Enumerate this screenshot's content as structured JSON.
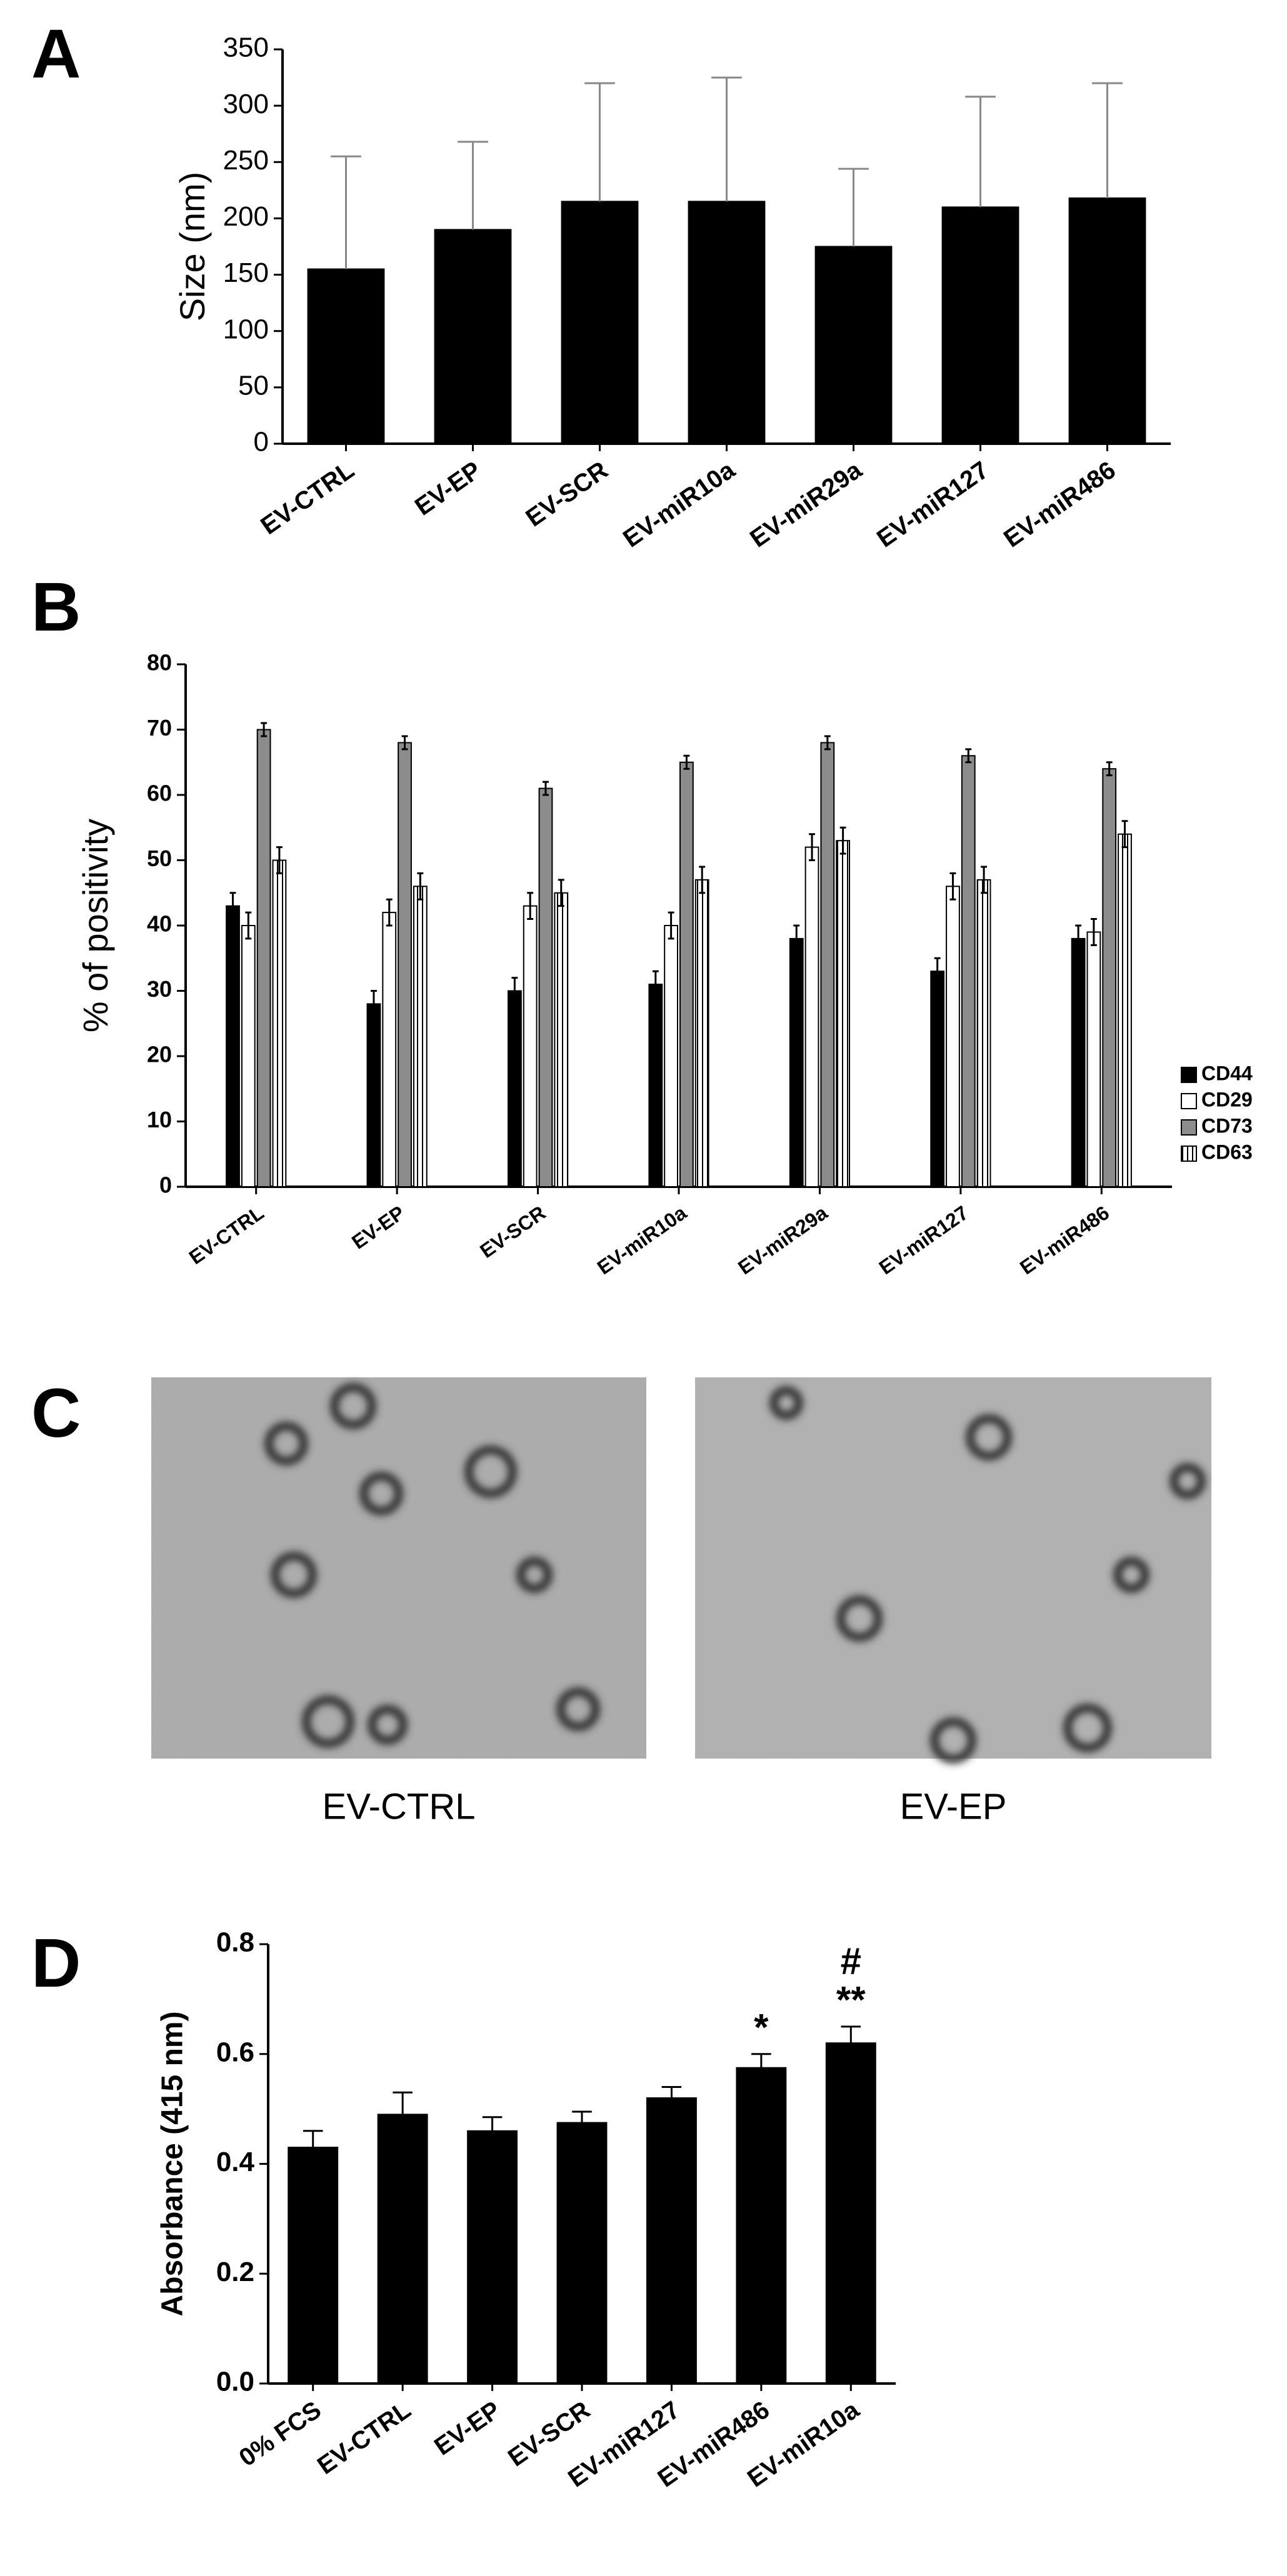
{
  "chart_data": [
    {
      "panel": "A",
      "type": "bar",
      "ylabel": "Size (nm)",
      "categories": [
        "EV-CTRL",
        "EV-EP",
        "EV-SCR",
        "EV-miR10a",
        "EV-miR29a",
        "EV-miR127",
        "EV-miR486"
      ],
      "values": [
        155,
        190,
        215,
        215,
        175,
        210,
        218
      ],
      "errors": [
        100,
        78,
        105,
        110,
        69,
        98,
        102
      ],
      "color": "#000000",
      "ylim": [
        0,
        350
      ],
      "yticks": [
        0,
        50,
        100,
        150,
        200,
        250,
        300,
        350
      ],
      "grid": false
    },
    {
      "panel": "B",
      "type": "bar",
      "ylabel": "% of positivity",
      "categories": [
        "EV-CTRL",
        "EV-EP",
        "EV-SCR",
        "EV-miR10a",
        "EV-miR29a",
        "EV-miR127",
        "EV-miR486"
      ],
      "series": [
        {
          "name": "CD44",
          "color": "#000000",
          "values": [
            43,
            28,
            30,
            31,
            38,
            33,
            38
          ],
          "errors": [
            2,
            2,
            2,
            2,
            2,
            2,
            2
          ]
        },
        {
          "name": "CD29",
          "color": "#ffffff",
          "values": [
            40,
            42,
            43,
            40,
            52,
            46,
            39
          ],
          "errors": [
            2,
            2,
            2,
            2,
            2,
            2,
            2
          ]
        },
        {
          "name": "CD73",
          "color": "#8c8c8c",
          "values": [
            70,
            68,
            61,
            65,
            68,
            66,
            64
          ],
          "errors": [
            1,
            1,
            1,
            1,
            1,
            1,
            1
          ]
        },
        {
          "name": "CD63",
          "color": "#ffffff",
          "pattern": "vertical-hatch",
          "values": [
            50,
            46,
            45,
            47,
            53,
            47,
            54
          ],
          "errors": [
            2,
            2,
            2,
            2,
            2,
            2,
            2
          ]
        }
      ],
      "legend": "right",
      "ylim": [
        0,
        80
      ],
      "yticks": [
        0,
        10,
        20,
        30,
        40,
        50,
        60,
        70,
        80
      ],
      "grid": false
    },
    {
      "panel": "D",
      "type": "bar",
      "ylabel": "Absorbance (415 nm)",
      "categories": [
        "0% FCS",
        "EV-CTRL",
        "EV-EP",
        "EV-SCR",
        "EV-miR127",
        "EV-miR486",
        "EV-miR10a"
      ],
      "values": [
        0.43,
        0.49,
        0.46,
        0.475,
        0.52,
        0.575,
        0.62
      ],
      "errors": [
        0.03,
        0.04,
        0.025,
        0.02,
        0.02,
        0.025,
        0.03
      ],
      "color": "#000000",
      "ylim": [
        0,
        0.8
      ],
      "yticks": [
        {
          "value": 0,
          "label": "0.0"
        },
        0.2,
        0.4,
        0.6,
        0.8
      ],
      "grid": false,
      "annotations": [
        {
          "label": "*",
          "x": "EV-miR486"
        },
        {
          "label": "**",
          "x": "EV-miR10a"
        },
        {
          "label": "#",
          "x": "EV-miR10a"
        }
      ]
    }
  ],
  "images": {
    "panel": "C",
    "captions": [
      "EV-CTRL",
      "EV-EP"
    ]
  }
}
